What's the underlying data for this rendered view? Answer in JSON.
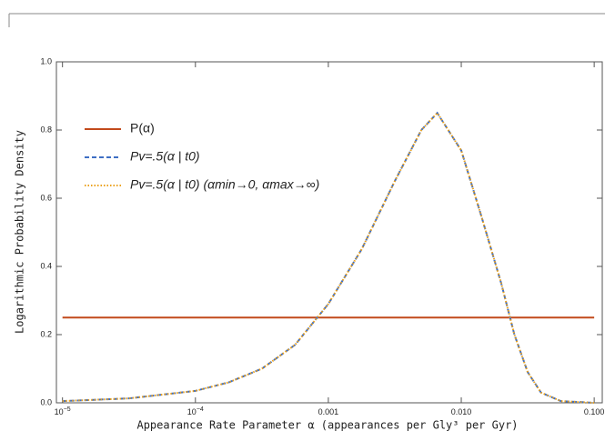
{
  "chart_data": {
    "type": "line",
    "xlabel": "Appearance Rate Parameter α (appearances per Gly³ per Gyr)",
    "ylabel": "Logarithmic Probability Density",
    "xscale": "log",
    "xlim": [
      9e-06,
      0.115
    ],
    "ylim": [
      0,
      1
    ],
    "xticks": [
      {
        "value": 1e-05,
        "label": "10",
        "exponent": "−5"
      },
      {
        "value": 0.0001,
        "label": "10",
        "exponent": "−4"
      },
      {
        "value": 0.001,
        "label": "0.001"
      },
      {
        "value": 0.01,
        "label": "0.010"
      },
      {
        "value": 0.1,
        "label": "0.100"
      }
    ],
    "yticks": [
      {
        "value": 0,
        "label": "0.0"
      },
      {
        "value": 0.2,
        "label": "0.2"
      },
      {
        "value": 0.4,
        "label": "0.4"
      },
      {
        "value": 0.6,
        "label": "0.6"
      },
      {
        "value": 0.8,
        "label": "0.8"
      },
      {
        "value": 1,
        "label": "1.0"
      }
    ],
    "legend": "upper left",
    "series": [
      {
        "name": "P(α)",
        "color": "#c24a1c",
        "style": "solid",
        "x": [
          1e-05,
          0.1
        ],
        "values": [
          0.25,
          0.25
        ]
      },
      {
        "name": "Pv=.5(α | t0)",
        "color": "#3f6fc4",
        "style": "dashed",
        "x": [
          1e-05,
          3.16e-05,
          0.0001,
          0.000178,
          0.000316,
          0.000562,
          0.001,
          0.00178,
          0.00316,
          0.00501,
          0.0066,
          0.01,
          0.0141,
          0.02,
          0.0251,
          0.0316,
          0.0398,
          0.0562,
          0.1
        ],
        "values": [
          0.005,
          0.013,
          0.035,
          0.06,
          0.1,
          0.17,
          0.29,
          0.45,
          0.65,
          0.8,
          0.85,
          0.74,
          0.55,
          0.35,
          0.2,
          0.09,
          0.03,
          0.005,
          0
        ]
      },
      {
        "name": "Pv=.5(α | t0) (αmin→0, αmax→∞)",
        "color": "#eba21e",
        "style": "dotted",
        "x": [
          1e-05,
          3.16e-05,
          0.0001,
          0.000178,
          0.000316,
          0.000562,
          0.001,
          0.00178,
          0.00316,
          0.00501,
          0.0066,
          0.01,
          0.0141,
          0.02,
          0.0251,
          0.0316,
          0.0398,
          0.0562,
          0.1
        ],
        "values": [
          0.005,
          0.013,
          0.035,
          0.06,
          0.1,
          0.17,
          0.29,
          0.45,
          0.65,
          0.8,
          0.85,
          0.74,
          0.55,
          0.35,
          0.2,
          0.09,
          0.03,
          0.005,
          0
        ]
      }
    ]
  }
}
